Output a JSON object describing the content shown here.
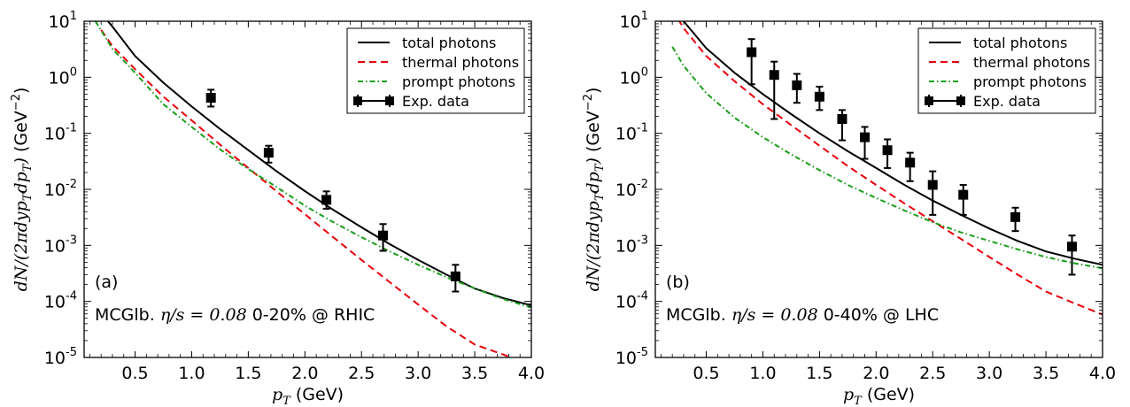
{
  "chart_data": [
    {
      "type": "line",
      "panel_tag": "(a)",
      "annotation": "MCGlb. η/s = 0.08 0-20% @ RHIC",
      "xlabel": "p_T (GeV)",
      "ylabel": "dN/(2πdy p_T dp_T) (GeV^-2)",
      "xlim": [
        0.05,
        4.0
      ],
      "ylim": [
        1e-05,
        10
      ],
      "yscale": "log",
      "x_ticks": [
        0.5,
        1.0,
        1.5,
        2.0,
        2.5,
        3.0,
        3.5,
        4.0
      ],
      "x_tick_labels": [
        "0.5",
        "1.0",
        "1.5",
        "2.0",
        "2.5",
        "3.0",
        "3.5",
        "4.0"
      ],
      "y_ticks": [
        1e-05,
        0.0001,
        0.001,
        0.01,
        0.1,
        1,
        10
      ],
      "y_tick_labels": [
        {
          "base": "10",
          "exp": "-5"
        },
        {
          "base": "10",
          "exp": "-4"
        },
        {
          "base": "10",
          "exp": "-3"
        },
        {
          "base": "10",
          "exp": "-2"
        },
        {
          "base": "10",
          "exp": "-1"
        },
        {
          "base": "10",
          "exp": "0"
        },
        {
          "base": "10",
          "exp": "1"
        }
      ],
      "legend_position": "top-right",
      "series": [
        {
          "name": "total photons",
          "style": "solid",
          "color": "#000000",
          "x": [
            0.2,
            0.3,
            0.5,
            0.75,
            1.0,
            1.25,
            1.5,
            1.75,
            2.0,
            2.25,
            2.5,
            2.75,
            3.0,
            3.25,
            3.5,
            3.75,
            4.0
          ],
          "y": [
            14,
            8.0,
            2.4,
            0.8,
            0.3,
            0.12,
            0.05,
            0.021,
            0.0093,
            0.0043,
            0.0021,
            0.00105,
            0.00055,
            0.0003,
            0.00017,
            0.000115,
            8.5e-05
          ]
        },
        {
          "name": "thermal photons",
          "style": "dashed",
          "color": "#e8000b",
          "x": [
            0.2,
            0.3,
            0.5,
            0.75,
            1.0,
            1.25,
            1.5,
            1.75,
            2.0,
            2.25,
            2.5,
            2.75,
            3.0,
            3.25,
            3.5,
            3.75,
            3.82
          ],
          "y": [
            7.0,
            3.6,
            1.4,
            0.45,
            0.17,
            0.063,
            0.024,
            0.0092,
            0.0036,
            0.0014,
            0.00055,
            0.00022,
            8.8e-05,
            3.6e-05,
            1.7e-05,
            1.13e-05,
            1e-05
          ]
        },
        {
          "name": "prompt photons",
          "style": "dashdot",
          "color": "#1a9e1a",
          "x": [
            0.15,
            0.3,
            0.5,
            0.75,
            1.0,
            1.25,
            1.5,
            1.75,
            2.0,
            2.25,
            2.5,
            2.75,
            3.0,
            3.25,
            3.5,
            3.75,
            4.0
          ],
          "y": [
            10,
            3.2,
            1.2,
            0.33,
            0.13,
            0.052,
            0.023,
            0.011,
            0.0051,
            0.0026,
            0.0014,
            0.00078,
            0.00045,
            0.00027,
            0.00017,
            0.00011,
            7.8e-05
          ]
        },
        {
          "name": "Exp. data",
          "style": "markers",
          "color": "#000000",
          "x": [
            1.17,
            1.68,
            2.19,
            2.69,
            3.33
          ],
          "y": [
            0.43,
            0.045,
            0.0065,
            0.0015,
            0.00028
          ],
          "yerr_low": [
            0.3,
            0.03,
            0.0045,
            0.0008,
            0.00015
          ],
          "yerr_high": [
            0.6,
            0.06,
            0.0092,
            0.0024,
            0.00045
          ]
        }
      ]
    },
    {
      "type": "line",
      "panel_tag": "(b)",
      "annotation": "MCGlb. η/s = 0.08 0-40% @ LHC",
      "xlabel": "p_T (GeV)",
      "ylabel": "dN/(2πdy p_T dp_T) (GeV^-2)",
      "xlim": [
        0.05,
        4.0
      ],
      "ylim": [
        1e-05,
        10
      ],
      "yscale": "log",
      "x_ticks": [
        0.5,
        1.0,
        1.5,
        2.0,
        2.5,
        3.0,
        3.5,
        4.0
      ],
      "x_tick_labels": [
        "0.5",
        "1.0",
        "1.5",
        "2.0",
        "2.5",
        "3.0",
        "3.5",
        "4.0"
      ],
      "y_ticks": [
        1e-05,
        0.0001,
        0.001,
        0.01,
        0.1,
        1,
        10
      ],
      "y_tick_labels": [
        {
          "base": "10",
          "exp": "-5"
        },
        {
          "base": "10",
          "exp": "-4"
        },
        {
          "base": "10",
          "exp": "-3"
        },
        {
          "base": "10",
          "exp": "-2"
        },
        {
          "base": "10",
          "exp": "-1"
        },
        {
          "base": "10",
          "exp": "0"
        },
        {
          "base": "10",
          "exp": "1"
        }
      ],
      "legend_position": "top-right",
      "series": [
        {
          "name": "total photons",
          "style": "solid",
          "color": "#000000",
          "x": [
            0.25,
            0.3,
            0.5,
            0.75,
            1.0,
            1.25,
            1.5,
            1.75,
            2.0,
            2.25,
            2.5,
            2.75,
            3.0,
            3.25,
            3.5,
            3.75,
            4.0
          ],
          "y": [
            14,
            10,
            3.3,
            1.2,
            0.5,
            0.22,
            0.1,
            0.048,
            0.024,
            0.012,
            0.0063,
            0.0035,
            0.002,
            0.0012,
            0.00078,
            0.00058,
            0.00045
          ]
        },
        {
          "name": "thermal photons",
          "style": "dashed",
          "color": "#e8000b",
          "x": [
            0.25,
            0.3,
            0.5,
            0.75,
            1.0,
            1.25,
            1.5,
            1.75,
            2.0,
            2.25,
            2.5,
            2.75,
            3.0,
            3.25,
            3.5,
            3.75,
            4.0
          ],
          "y": [
            11,
            7.5,
            2.4,
            0.85,
            0.33,
            0.14,
            0.06,
            0.026,
            0.012,
            0.0056,
            0.0027,
            0.0013,
            0.00062,
            0.0003,
            0.00015,
            9.3e-05,
            5.8e-05
          ]
        },
        {
          "name": "prompt photons",
          "style": "dashdot",
          "color": "#1a9e1a",
          "x": [
            0.2,
            0.3,
            0.5,
            0.75,
            1.0,
            1.25,
            1.5,
            1.75,
            2.0,
            2.25,
            2.5,
            2.75,
            3.0,
            3.25,
            3.5,
            3.75,
            4.0
          ],
          "y": [
            3.5,
            1.6,
            0.52,
            0.19,
            0.085,
            0.042,
            0.022,
            0.012,
            0.007,
            0.0042,
            0.0026,
            0.0017,
            0.0012,
            0.00085,
            0.00062,
            0.00048,
            0.00039
          ]
        },
        {
          "name": "Exp. data",
          "style": "markers",
          "color": "#000000",
          "x": [
            0.9,
            1.1,
            1.3,
            1.5,
            1.7,
            1.9,
            2.1,
            2.3,
            2.5,
            2.77,
            3.23,
            3.73
          ],
          "y": [
            2.8,
            1.1,
            0.72,
            0.45,
            0.18,
            0.085,
            0.05,
            0.03,
            0.012,
            0.008,
            0.0032,
            0.00095
          ],
          "yerr_low": [
            0.75,
            0.18,
            0.35,
            0.26,
            0.075,
            0.035,
            0.024,
            0.014,
            0.0035,
            0.0035,
            0.0018,
            0.0003
          ],
          "yerr_high": [
            4.8,
            1.9,
            1.15,
            0.68,
            0.26,
            0.13,
            0.078,
            0.045,
            0.021,
            0.012,
            0.0047,
            0.0015
          ]
        }
      ]
    }
  ]
}
